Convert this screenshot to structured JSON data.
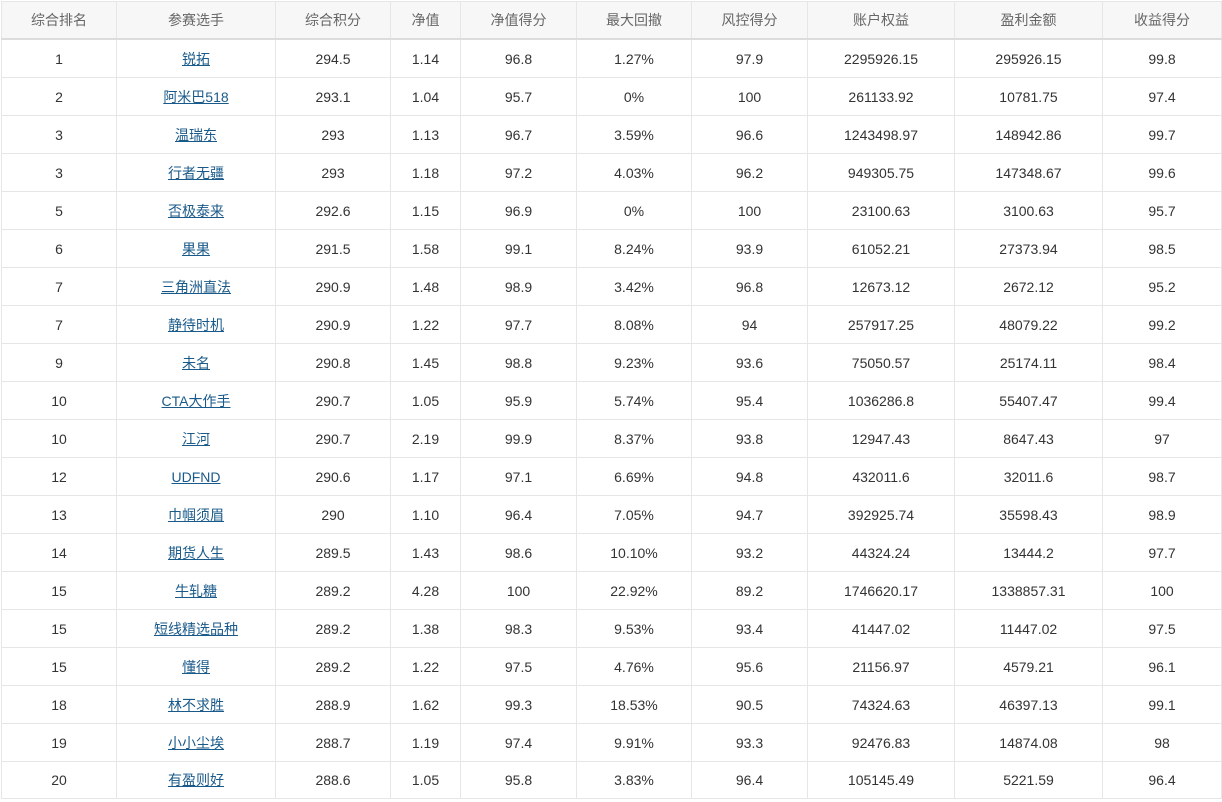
{
  "columns": [
    "综合排名",
    "参赛选手",
    "综合积分",
    "净值",
    "净值得分",
    "最大回撤",
    "风控得分",
    "账户权益",
    "盈利金额",
    "收益得分"
  ],
  "rows": [
    [
      "1",
      "锐拓",
      "294.5",
      "1.14",
      "96.8",
      "1.27%",
      "97.9",
      "2295926.15",
      "295926.15",
      "99.8"
    ],
    [
      "2",
      "阿米巴518",
      "293.1",
      "1.04",
      "95.7",
      "0%",
      "100",
      "261133.92",
      "10781.75",
      "97.4"
    ],
    [
      "3",
      "温瑞东",
      "293",
      "1.13",
      "96.7",
      "3.59%",
      "96.6",
      "1243498.97",
      "148942.86",
      "99.7"
    ],
    [
      "3",
      "行者无疆",
      "293",
      "1.18",
      "97.2",
      "4.03%",
      "96.2",
      "949305.75",
      "147348.67",
      "99.6"
    ],
    [
      "5",
      "否极泰来",
      "292.6",
      "1.15",
      "96.9",
      "0%",
      "100",
      "23100.63",
      "3100.63",
      "95.7"
    ],
    [
      "6",
      "果果",
      "291.5",
      "1.58",
      "99.1",
      "8.24%",
      "93.9",
      "61052.21",
      "27373.94",
      "98.5"
    ],
    [
      "7",
      "三角洲直法",
      "290.9",
      "1.48",
      "98.9",
      "3.42%",
      "96.8",
      "12673.12",
      "2672.12",
      "95.2"
    ],
    [
      "7",
      "静待时机",
      "290.9",
      "1.22",
      "97.7",
      "8.08%",
      "94",
      "257917.25",
      "48079.22",
      "99.2"
    ],
    [
      "9",
      "未名",
      "290.8",
      "1.45",
      "98.8",
      "9.23%",
      "93.6",
      "75050.57",
      "25174.11",
      "98.4"
    ],
    [
      "10",
      "CTA大作手",
      "290.7",
      "1.05",
      "95.9",
      "5.74%",
      "95.4",
      "1036286.8",
      "55407.47",
      "99.4"
    ],
    [
      "10",
      "江河",
      "290.7",
      "2.19",
      "99.9",
      "8.37%",
      "93.8",
      "12947.43",
      "8647.43",
      "97"
    ],
    [
      "12",
      "UDFND",
      "290.6",
      "1.17",
      "97.1",
      "6.69%",
      "94.8",
      "432011.6",
      "32011.6",
      "98.7"
    ],
    [
      "13",
      "巾帼须眉",
      "290",
      "1.10",
      "96.4",
      "7.05%",
      "94.7",
      "392925.74",
      "35598.43",
      "98.9"
    ],
    [
      "14",
      "期货人生",
      "289.5",
      "1.43",
      "98.6",
      "10.10%",
      "93.2",
      "44324.24",
      "13444.2",
      "97.7"
    ],
    [
      "15",
      "牛轧糖",
      "289.2",
      "4.28",
      "100",
      "22.92%",
      "89.2",
      "1746620.17",
      "1338857.31",
      "100"
    ],
    [
      "15",
      "短线精选品种",
      "289.2",
      "1.38",
      "98.3",
      "9.53%",
      "93.4",
      "41447.02",
      "11447.02",
      "97.5"
    ],
    [
      "15",
      "懂得",
      "289.2",
      "1.22",
      "97.5",
      "4.76%",
      "95.6",
      "21156.97",
      "4579.21",
      "96.1"
    ],
    [
      "18",
      "林不求胜",
      "288.9",
      "1.62",
      "99.3",
      "18.53%",
      "90.5",
      "74324.63",
      "46397.13",
      "99.1"
    ],
    [
      "19",
      "小小尘埃",
      "288.7",
      "1.19",
      "97.4",
      "9.91%",
      "93.3",
      "92476.83",
      "14874.08",
      "98"
    ],
    [
      "20",
      "有盈则好",
      "288.6",
      "1.05",
      "95.8",
      "3.83%",
      "96.4",
      "105145.49",
      "5221.59",
      "96.4"
    ]
  ],
  "colors": {
    "header_bg": "#f7f7f7",
    "border": "#e6e6e6",
    "link": "#1a5a8a",
    "text": "#333333"
  }
}
